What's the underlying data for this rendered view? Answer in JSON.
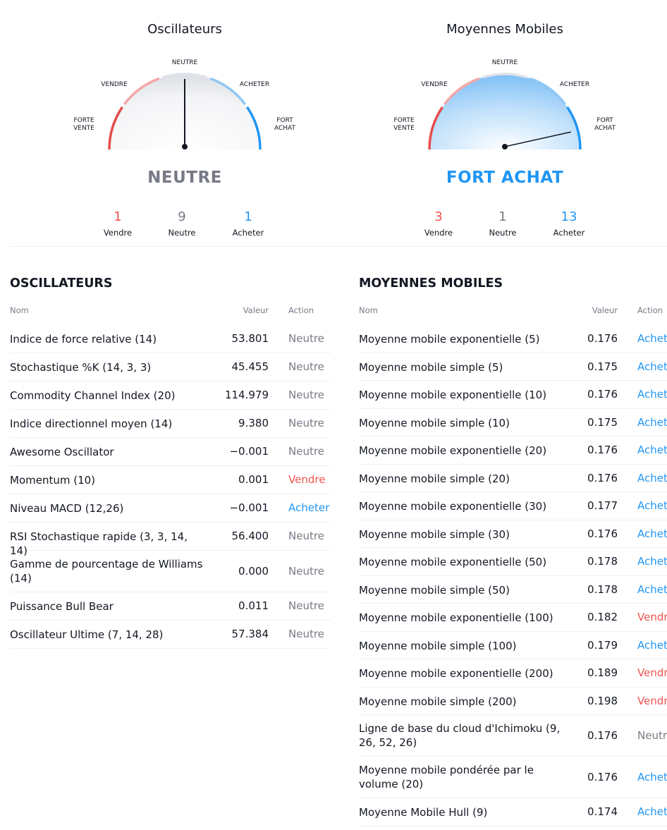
{
  "gauges": {
    "labels": {
      "strong_sell_1": "FORTE",
      "strong_sell_2": "VENTE",
      "sell": "VENDRE",
      "neutral": "NEUTRE",
      "buy": "ACHETER",
      "strong_buy_1": "FORT",
      "strong_buy_2": "ACHAT"
    },
    "oscillators": {
      "title": "Oscillateurs",
      "verdict": "NEUTRE",
      "needle_level": 0.5,
      "sell_count": "1",
      "sell_label": "Vendre",
      "neutral_count": "9",
      "neutral_label": "Neutre",
      "buy_count": "1",
      "buy_label": "Acheter"
    },
    "moving_averages": {
      "title": "Moyennes Mobiles",
      "verdict": "FORT ACHAT",
      "needle_level": 0.93,
      "sell_count": "3",
      "sell_label": "Vendre",
      "neutral_count": "1",
      "neutral_label": "Neutre",
      "buy_count": "13",
      "buy_label": "Acheter"
    }
  },
  "colors": {
    "sell": "#f05350",
    "neutral": "#787b86",
    "buy": "#2196f3",
    "strong_sell": "#e74c4c",
    "soft_sell": "#f4a7a7",
    "soft_buy": "#90c8f5",
    "neutral_arc": "#e0e3eb"
  },
  "oscillators_table": {
    "title": "OSCILLATEURS",
    "headers": {
      "name": "Nom",
      "value": "Valeur",
      "action": "Action"
    },
    "rows": [
      {
        "name": "Indice de force relative (14)",
        "value": "53.801",
        "action": "Neutre",
        "type": "neutral"
      },
      {
        "name": "Stochastique %K (14, 3, 3)",
        "value": "45.455",
        "action": "Neutre",
        "type": "neutral"
      },
      {
        "name": "Commodity Channel Index (20)",
        "value": "114.979",
        "action": "Neutre",
        "type": "neutral"
      },
      {
        "name": "Indice directionnel moyen (14)",
        "value": "9.380",
        "action": "Neutre",
        "type": "neutral"
      },
      {
        "name": "Awesome Oscillator",
        "value": "−0.001",
        "action": "Neutre",
        "type": "neutral"
      },
      {
        "name": "Momentum (10)",
        "value": "0.001",
        "action": "Vendre",
        "type": "sell"
      },
      {
        "name": "Niveau MACD (12,26)",
        "value": "−0.001",
        "action": "Acheter",
        "type": "buy"
      },
      {
        "name": "RSI Stochastique rapide (3, 3, 14, 14)",
        "value": "56.400",
        "action": "Neutre",
        "type": "neutral"
      },
      {
        "name": "Gamme de pourcentage de Williams (14)",
        "value": "0.000",
        "action": "Neutre",
        "type": "neutral"
      },
      {
        "name": "Puissance Bull Bear",
        "value": "0.011",
        "action": "Neutre",
        "type": "neutral"
      },
      {
        "name": "Oscillateur Ultime (7, 14, 28)",
        "value": "57.384",
        "action": "Neutre",
        "type": "neutral"
      }
    ]
  },
  "moving_averages_table": {
    "title": "MOYENNES MOBILES",
    "headers": {
      "name": "Nom",
      "value": "Valeur",
      "action": "Action"
    },
    "rows": [
      {
        "name": "Moyenne mobile exponentielle (5)",
        "value": "0.176",
        "action": "Acheter",
        "type": "buy"
      },
      {
        "name": "Moyenne mobile simple (5)",
        "value": "0.175",
        "action": "Acheter",
        "type": "buy"
      },
      {
        "name": "Moyenne mobile exponentielle (10)",
        "value": "0.176",
        "action": "Acheter",
        "type": "buy"
      },
      {
        "name": "Moyenne mobile simple (10)",
        "value": "0.175",
        "action": "Acheter",
        "type": "buy"
      },
      {
        "name": "Moyenne mobile exponentielle (20)",
        "value": "0.176",
        "action": "Acheter",
        "type": "buy"
      },
      {
        "name": "Moyenne mobile simple (20)",
        "value": "0.176",
        "action": "Acheter",
        "type": "buy"
      },
      {
        "name": "Moyenne mobile exponentielle (30)",
        "value": "0.177",
        "action": "Acheter",
        "type": "buy"
      },
      {
        "name": "Moyenne mobile simple (30)",
        "value": "0.176",
        "action": "Acheter",
        "type": "buy"
      },
      {
        "name": "Moyenne mobile exponentielle (50)",
        "value": "0.178",
        "action": "Acheter",
        "type": "buy"
      },
      {
        "name": "Moyenne mobile simple (50)",
        "value": "0.178",
        "action": "Acheter",
        "type": "buy"
      },
      {
        "name": "Moyenne mobile exponentielle (100)",
        "value": "0.182",
        "action": "Vendre",
        "type": "sell"
      },
      {
        "name": "Moyenne mobile simple (100)",
        "value": "0.179",
        "action": "Acheter",
        "type": "buy"
      },
      {
        "name": "Moyenne mobile exponentielle (200)",
        "value": "0.189",
        "action": "Vendre",
        "type": "sell"
      },
      {
        "name": "Moyenne mobile simple (200)",
        "value": "0.198",
        "action": "Vendre",
        "type": "sell"
      },
      {
        "name": "Ligne de base du cloud d'Ichimoku (9, 26, 52, 26)",
        "value": "0.176",
        "action": "Neutre",
        "type": "neutral"
      },
      {
        "name": "Moyenne mobile pondérée par le volume (20)",
        "value": "0.176",
        "action": "Acheter",
        "type": "buy"
      },
      {
        "name": "Moyenne Mobile Hull (9)",
        "value": "0.174",
        "action": "Acheter",
        "type": "buy"
      }
    ]
  }
}
